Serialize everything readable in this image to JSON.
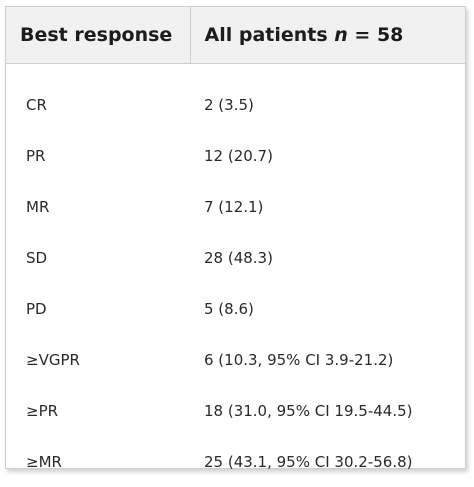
{
  "header": {
    "col1": "Best response",
    "col2_prefix": "All patients ",
    "col2_n": "n",
    "col2_suffix": " = 58"
  },
  "rows": [
    {
      "label": "CR",
      "value": "2 (3.5)"
    },
    {
      "label": "PR",
      "value": "12 (20.7)"
    },
    {
      "label": "MR",
      "value": "7 (12.1)"
    },
    {
      "label": "SD",
      "value": "28 (48.3)"
    },
    {
      "label": "PD",
      "value": "5 (8.6)"
    },
    {
      "label": "≥VGPR",
      "value": "6 (10.3, 95% CI 3.9-21.2)"
    },
    {
      "label": "≥PR",
      "value": "18 (31.0, 95% CI 19.5-44.5)"
    },
    {
      "label": "≥MR",
      "value": "25 (43.1, 95% CI 30.2-56.8)"
    }
  ]
}
